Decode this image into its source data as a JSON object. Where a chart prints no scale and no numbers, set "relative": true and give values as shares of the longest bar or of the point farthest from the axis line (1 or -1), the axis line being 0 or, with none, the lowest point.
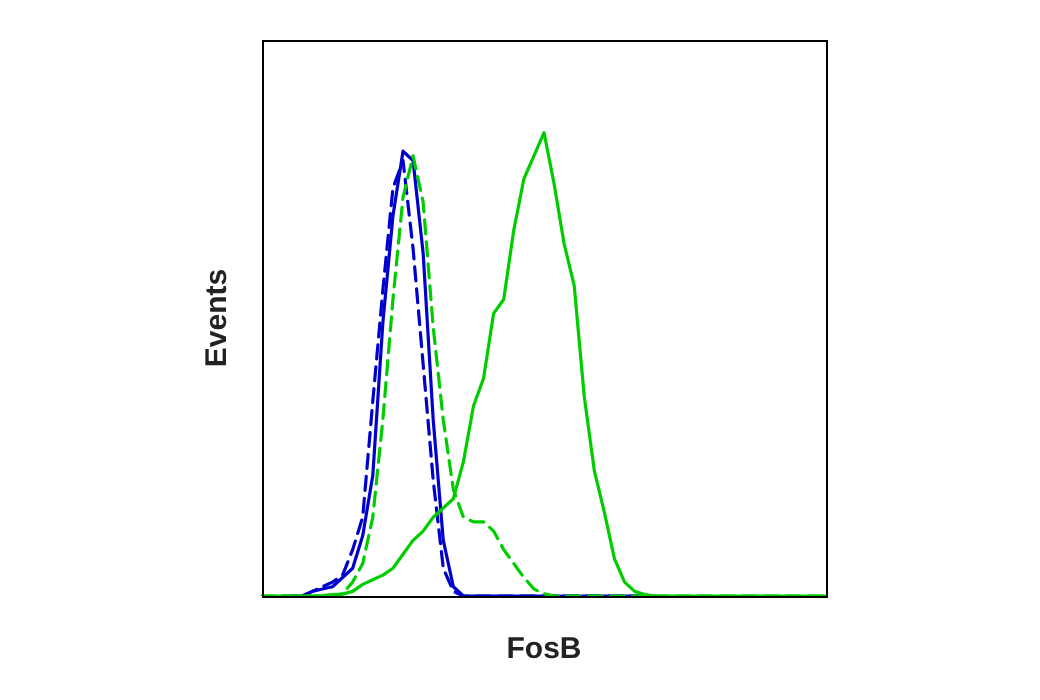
{
  "chart_data": {
    "type": "line",
    "relative": true,
    "xlabel": "FosB",
    "ylabel": "Events",
    "marker": "none",
    "legend": false,
    "categories": [
      null,
      null,
      null,
      null,
      null,
      null,
      null,
      null,
      null,
      null,
      null,
      null,
      null,
      null,
      null,
      null,
      null,
      null,
      null,
      null,
      null,
      null,
      null,
      null,
      null,
      null,
      null,
      null,
      null,
      null,
      null,
      null,
      null,
      null,
      null,
      null,
      null,
      null,
      null,
      null,
      null,
      null,
      null,
      null,
      null,
      null,
      null,
      null,
      null,
      null,
      null,
      null,
      null,
      null,
      null,
      null,
      null
    ],
    "series": [
      {
        "color": "#00cc00",
        "line_style": "solid",
        "values": [
          0,
          0,
          0,
          0,
          0,
          0,
          0.001,
          0.003,
          0.004,
          0.01,
          0.025,
          0.035,
          0.045,
          0.06,
          0.09,
          0.12,
          0.14,
          0.17,
          0.19,
          0.21,
          0.29,
          0.41,
          0.47,
          0.61,
          0.64,
          0.79,
          0.9,
          0.95,
          1,
          0.89,
          0.76,
          0.67,
          0.43,
          0.27,
          0.18,
          0.08,
          0.03,
          0.01,
          0.003,
          0,
          0,
          0,
          0,
          0,
          0,
          0,
          0,
          0,
          0,
          0,
          0,
          0,
          0,
          0,
          0,
          0,
          0
        ]
      },
      {
        "color": "#00cc00",
        "line_style": "dashed",
        "values": [
          0,
          0,
          0,
          0,
          0,
          0,
          0,
          0,
          0.005,
          0.03,
          0.07,
          0.17,
          0.38,
          0.64,
          0.86,
          0.95,
          0.85,
          0.58,
          0.38,
          0.23,
          0.17,
          0.16,
          0.16,
          0.14,
          0.1,
          0.07,
          0.04,
          0.015,
          0.005,
          0,
          0,
          0,
          0,
          0,
          0,
          0,
          0,
          0,
          0,
          0,
          0,
          0,
          0,
          0,
          0,
          0,
          0,
          0,
          0,
          0,
          0,
          0,
          0,
          0,
          0,
          0,
          0
        ]
      },
      {
        "color": "#0000cc",
        "line_style": "solid",
        "values": [
          null,
          null,
          null,
          0,
          0,
          0.01,
          0.015,
          0.02,
          0.04,
          0.06,
          0.13,
          0.26,
          0.59,
          0.82,
          0.96,
          0.94,
          0.74,
          0.38,
          0.12,
          0.02,
          0,
          0,
          0,
          0,
          0,
          0,
          0,
          0,
          0,
          0,
          0,
          0,
          0,
          0,
          0,
          0,
          0,
          0,
          0,
          null,
          null,
          null,
          null,
          null,
          null,
          null,
          null,
          null,
          null,
          null,
          null,
          null,
          null,
          null,
          null,
          null,
          null
        ]
      },
      {
        "color": "#0000cc",
        "line_style": "dashed",
        "values": [
          null,
          null,
          0,
          0,
          0,
          0.01,
          0.02,
          0.03,
          0.045,
          0.1,
          0.17,
          0.42,
          0.66,
          0.88,
          0.94,
          0.75,
          0.5,
          0.25,
          0.06,
          0.01,
          0,
          0,
          0,
          0,
          0,
          0,
          0,
          0,
          0,
          0,
          0,
          0,
          0,
          0,
          0,
          0,
          0,
          0,
          0,
          0,
          null,
          null,
          null,
          null,
          null,
          null,
          null,
          null,
          null,
          null,
          null,
          null,
          null,
          null,
          null,
          null,
          null
        ]
      }
    ]
  }
}
